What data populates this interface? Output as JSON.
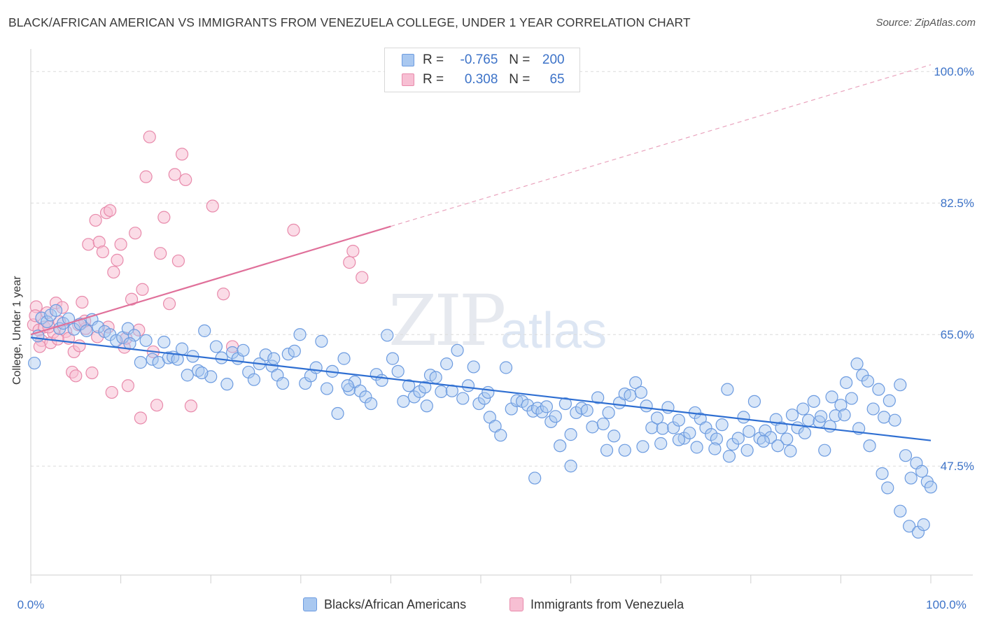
{
  "title": "BLACK/AFRICAN AMERICAN VS IMMIGRANTS FROM VENEZUELA COLLEGE, UNDER 1 YEAR CORRELATION CHART",
  "source": "Source: ZipAtlas.com",
  "watermark": {
    "zip": "ZIP",
    "atlas": "atlas"
  },
  "legend": {
    "rows": [
      {
        "r_label": "R =",
        "r_value": "-0.765",
        "n_label": "N =",
        "n_value": "200",
        "color": "#a9c8f0",
        "border": "#6c9be0"
      },
      {
        "r_label": "R =",
        "r_value": " 0.308",
        "n_label": "N =",
        "n_value": "65",
        "color": "#f7bfd3",
        "border": "#e88aab"
      }
    ]
  },
  "bottom_legend": [
    {
      "label": "Blacks/African Americans",
      "color": "#a9c8f0",
      "border": "#6c9be0"
    },
    {
      "label": "Immigrants from Venezuela",
      "color": "#f7bfd3",
      "border": "#e88aab"
    }
  ],
  "chart_data": {
    "type": "scatter",
    "title": "BLACK/AFRICAN AMERICAN VS IMMIGRANTS FROM VENEZUELA COLLEGE, UNDER 1 YEAR CORRELATION CHART",
    "xlabel": "",
    "ylabel": "College, Under 1 year",
    "xlim": [
      0,
      100
    ],
    "ylim": [
      33,
      103
    ],
    "x_tick_labels": [
      "0.0%",
      "100.0%"
    ],
    "y_ticks": [
      47.5,
      65.0,
      82.5,
      100.0
    ],
    "y_tick_labels": [
      "47.5%",
      "65.0%",
      "82.5%",
      "100.0%"
    ],
    "grid": "horizontal dashed",
    "legend_position": "top-center",
    "series": [
      {
        "name": "Blacks/African Americans",
        "color": "#6c9be0",
        "fill": "#a9c8f0",
        "R": -0.765,
        "N": 200,
        "trend": {
          "x": [
            0,
            100
          ],
          "y": [
            64.6,
            50.9
          ]
        },
        "points": [
          [
            0.4,
            61.2
          ],
          [
            0.8,
            64.8
          ],
          [
            1.2,
            67.2
          ],
          [
            1.8,
            66.7
          ],
          [
            2.2,
            67.6
          ],
          [
            2.8,
            68.2
          ],
          [
            3.2,
            65.8
          ],
          [
            3.6,
            66.5
          ],
          [
            4.2,
            67.1
          ],
          [
            4.8,
            65.7
          ],
          [
            5.5,
            66.4
          ],
          [
            6.2,
            65.5
          ],
          [
            6.8,
            67.0
          ],
          [
            7.5,
            66.0
          ],
          [
            8.2,
            65.4
          ],
          [
            8.8,
            65.0
          ],
          [
            9.5,
            64.2
          ],
          [
            10.2,
            64.6
          ],
          [
            10.8,
            65.8
          ],
          [
            11.5,
            64.9
          ],
          [
            12.2,
            61.3
          ],
          [
            12.8,
            64.2
          ],
          [
            13.5,
            61.7
          ],
          [
            14.2,
            61.3
          ],
          [
            14.8,
            64.0
          ],
          [
            15.3,
            61.9
          ],
          [
            15.8,
            62.0
          ],
          [
            16.3,
            61.7
          ],
          [
            16.8,
            63.1
          ],
          [
            17.4,
            59.6
          ],
          [
            18.0,
            62.1
          ],
          [
            18.6,
            60.2
          ],
          [
            19.3,
            65.5
          ],
          [
            20.0,
            59.4
          ],
          [
            20.6,
            63.4
          ],
          [
            21.2,
            61.9
          ],
          [
            21.8,
            58.4
          ],
          [
            22.4,
            62.6
          ],
          [
            23.0,
            61.8
          ],
          [
            23.6,
            62.9
          ],
          [
            24.2,
            60.0
          ],
          [
            24.8,
            59.0
          ],
          [
            25.4,
            61.1
          ],
          [
            26.1,
            62.3
          ],
          [
            26.8,
            60.8
          ],
          [
            27.4,
            59.6
          ],
          [
            28.0,
            58.5
          ],
          [
            28.6,
            62.4
          ],
          [
            29.3,
            62.8
          ],
          [
            29.9,
            65.0
          ],
          [
            30.5,
            58.5
          ],
          [
            31.1,
            59.5
          ],
          [
            31.7,
            60.6
          ],
          [
            32.3,
            64.1
          ],
          [
            32.9,
            57.8
          ],
          [
            33.5,
            60.1
          ],
          [
            34.1,
            54.5
          ],
          [
            34.8,
            61.8
          ],
          [
            35.4,
            57.7
          ],
          [
            36.0,
            58.7
          ],
          [
            36.6,
            57.5
          ],
          [
            37.2,
            56.7
          ],
          [
            37.8,
            55.8
          ],
          [
            38.4,
            59.7
          ],
          [
            39.0,
            58.9
          ],
          [
            39.6,
            64.9
          ],
          [
            40.2,
            61.8
          ],
          [
            40.8,
            60.1
          ],
          [
            41.4,
            56.1
          ],
          [
            42.0,
            58.2
          ],
          [
            42.6,
            56.7
          ],
          [
            43.2,
            57.4
          ],
          [
            43.8,
            58.0
          ],
          [
            44.4,
            59.6
          ],
          [
            45.0,
            59.3
          ],
          [
            45.6,
            57.4
          ],
          [
            46.2,
            61.1
          ],
          [
            46.8,
            57.5
          ],
          [
            47.4,
            62.9
          ],
          [
            48.0,
            56.5
          ],
          [
            48.6,
            58.2
          ],
          [
            49.2,
            60.7
          ],
          [
            49.8,
            55.8
          ],
          [
            50.4,
            56.5
          ],
          [
            51.0,
            54.0
          ],
          [
            51.6,
            52.8
          ],
          [
            52.2,
            51.6
          ],
          [
            52.8,
            60.6
          ],
          [
            53.4,
            55.1
          ],
          [
            54.0,
            56.2
          ],
          [
            54.6,
            56.1
          ],
          [
            55.2,
            55.6
          ],
          [
            55.8,
            54.8
          ],
          [
            56.3,
            55.2
          ],
          [
            56.8,
            54.7
          ],
          [
            57.3,
            55.4
          ],
          [
            57.8,
            53.4
          ],
          [
            58.3,
            54.1
          ],
          [
            58.8,
            50.2
          ],
          [
            59.4,
            55.8
          ],
          [
            60.0,
            51.7
          ],
          [
            60.6,
            54.6
          ],
          [
            61.2,
            55.2
          ],
          [
            61.8,
            54.9
          ],
          [
            62.4,
            52.7
          ],
          [
            63.0,
            56.6
          ],
          [
            63.6,
            53.1
          ],
          [
            64.2,
            54.6
          ],
          [
            64.8,
            51.5
          ],
          [
            65.4,
            55.9
          ],
          [
            66.0,
            57.1
          ],
          [
            66.6,
            56.9
          ],
          [
            67.2,
            58.6
          ],
          [
            67.8,
            57.3
          ],
          [
            68.4,
            55.5
          ],
          [
            69.0,
            52.6
          ],
          [
            69.6,
            53.9
          ],
          [
            70.2,
            52.5
          ],
          [
            70.8,
            55.3
          ],
          [
            71.4,
            52.6
          ],
          [
            72.0,
            53.6
          ],
          [
            72.6,
            51.2
          ],
          [
            73.2,
            51.9
          ],
          [
            73.8,
            54.6
          ],
          [
            74.4,
            53.8
          ],
          [
            75.0,
            52.6
          ],
          [
            75.6,
            51.7
          ],
          [
            76.2,
            51.1
          ],
          [
            76.8,
            53.0
          ],
          [
            77.4,
            57.7
          ],
          [
            78.0,
            50.4
          ],
          [
            78.6,
            51.2
          ],
          [
            79.2,
            54.0
          ],
          [
            79.8,
            52.1
          ],
          [
            80.4,
            56.1
          ],
          [
            81.0,
            51.2
          ],
          [
            81.6,
            52.2
          ],
          [
            82.2,
            51.3
          ],
          [
            82.8,
            53.7
          ],
          [
            83.4,
            52.6
          ],
          [
            84.0,
            51.1
          ],
          [
            84.6,
            54.3
          ],
          [
            85.2,
            52.6
          ],
          [
            85.8,
            55.1
          ],
          [
            86.4,
            53.6
          ],
          [
            87.0,
            56.1
          ],
          [
            87.6,
            53.4
          ],
          [
            88.2,
            49.6
          ],
          [
            88.8,
            52.8
          ],
          [
            89.4,
            54.2
          ],
          [
            90.0,
            55.6
          ],
          [
            90.6,
            58.6
          ],
          [
            91.2,
            56.5
          ],
          [
            91.8,
            61.1
          ],
          [
            92.4,
            59.6
          ],
          [
            93.0,
            58.8
          ],
          [
            93.6,
            55.1
          ],
          [
            94.2,
            57.7
          ],
          [
            94.8,
            54.0
          ],
          [
            95.4,
            56.2
          ],
          [
            96.0,
            53.6
          ],
          [
            96.6,
            58.3
          ],
          [
            97.2,
            48.9
          ],
          [
            97.8,
            45.9
          ],
          [
            98.4,
            47.9
          ],
          [
            99.0,
            46.8
          ],
          [
            99.6,
            45.4
          ],
          [
            100.0,
            44.7
          ],
          [
            96.6,
            41.5
          ],
          [
            97.6,
            39.5
          ],
          [
            98.6,
            38.7
          ],
          [
            99.2,
            39.7
          ],
          [
            95.2,
            44.6
          ],
          [
            94.6,
            46.5
          ],
          [
            93.2,
            50.2
          ],
          [
            92.0,
            52.5
          ],
          [
            90.4,
            54.3
          ],
          [
            89.0,
            56.7
          ],
          [
            87.8,
            54.1
          ],
          [
            86.0,
            51.9
          ],
          [
            84.4,
            49.5
          ],
          [
            83.0,
            50.2
          ],
          [
            81.4,
            50.8
          ],
          [
            79.6,
            49.6
          ],
          [
            77.6,
            48.8
          ],
          [
            76.0,
            49.8
          ],
          [
            74.0,
            50.0
          ],
          [
            72.0,
            51.0
          ],
          [
            70.0,
            50.5
          ],
          [
            68.0,
            50.1
          ],
          [
            66.0,
            49.6
          ],
          [
            64.0,
            49.6
          ],
          [
            60.0,
            47.5
          ],
          [
            56.0,
            45.9
          ],
          [
            50.8,
            57.3
          ],
          [
            44.0,
            55.5
          ],
          [
            35.2,
            58.2
          ],
          [
            27.0,
            61.8
          ],
          [
            19.0,
            59.9
          ],
          [
            11.0,
            63.8
          ]
        ]
      },
      {
        "name": "Immigrants from Venezuela",
        "color": "#e88aab",
        "fill": "#f7bfd3",
        "R": 0.308,
        "N": 65,
        "trend_solid": {
          "x": [
            0,
            40
          ],
          "y": [
            65.0,
            79.4
          ]
        },
        "trend_dashed": {
          "x": [
            40,
            100
          ],
          "y": [
            79.4,
            100.9
          ]
        },
        "points": [
          [
            0.3,
            66.3
          ],
          [
            0.6,
            68.7
          ],
          [
            0.9,
            65.6
          ],
          [
            1.2,
            64.2
          ],
          [
            1.5,
            66.0
          ],
          [
            1.8,
            67.9
          ],
          [
            2.2,
            63.9
          ],
          [
            2.5,
            65.3
          ],
          [
            2.8,
            69.2
          ],
          [
            3.2,
            66.7
          ],
          [
            3.5,
            68.6
          ],
          [
            3.9,
            65.4
          ],
          [
            4.2,
            64.5
          ],
          [
            4.6,
            60.0
          ],
          [
            5.0,
            59.5
          ],
          [
            5.3,
            66.3
          ],
          [
            5.7,
            69.3
          ],
          [
            6.1,
            65.8
          ],
          [
            6.4,
            77.0
          ],
          [
            6.8,
            59.9
          ],
          [
            7.2,
            80.2
          ],
          [
            7.6,
            77.3
          ],
          [
            8.0,
            76.0
          ],
          [
            8.4,
            81.2
          ],
          [
            8.8,
            81.5
          ],
          [
            9.2,
            73.3
          ],
          [
            9.6,
            74.9
          ],
          [
            10.0,
            77.0
          ],
          [
            10.4,
            63.3
          ],
          [
            10.8,
            58.2
          ],
          [
            11.2,
            69.7
          ],
          [
            11.6,
            78.5
          ],
          [
            12.0,
            65.6
          ],
          [
            12.4,
            71.0
          ],
          [
            12.8,
            86.0
          ],
          [
            13.2,
            91.3
          ],
          [
            13.6,
            62.7
          ],
          [
            14.0,
            55.6
          ],
          [
            14.4,
            75.8
          ],
          [
            14.8,
            80.6
          ],
          [
            15.4,
            69.1
          ],
          [
            16.0,
            86.3
          ],
          [
            16.4,
            74.8
          ],
          [
            16.8,
            89.0
          ],
          [
            17.2,
            85.6
          ],
          [
            17.8,
            55.5
          ],
          [
            20.2,
            82.1
          ],
          [
            21.4,
            70.4
          ],
          [
            22.4,
            63.4
          ],
          [
            29.2,
            78.9
          ],
          [
            35.4,
            74.6
          ],
          [
            35.8,
            76.1
          ],
          [
            36.8,
            72.6
          ],
          [
            12.2,
            53.9
          ],
          [
            9.0,
            57.3
          ],
          [
            4.8,
            62.7
          ],
          [
            3.0,
            64.4
          ],
          [
            2.0,
            66.0
          ],
          [
            1.0,
            63.4
          ],
          [
            0.5,
            67.5
          ],
          [
            6.0,
            66.8
          ],
          [
            5.4,
            63.5
          ],
          [
            7.4,
            64.7
          ],
          [
            8.6,
            66.0
          ],
          [
            10.6,
            64.5
          ]
        ]
      }
    ]
  }
}
